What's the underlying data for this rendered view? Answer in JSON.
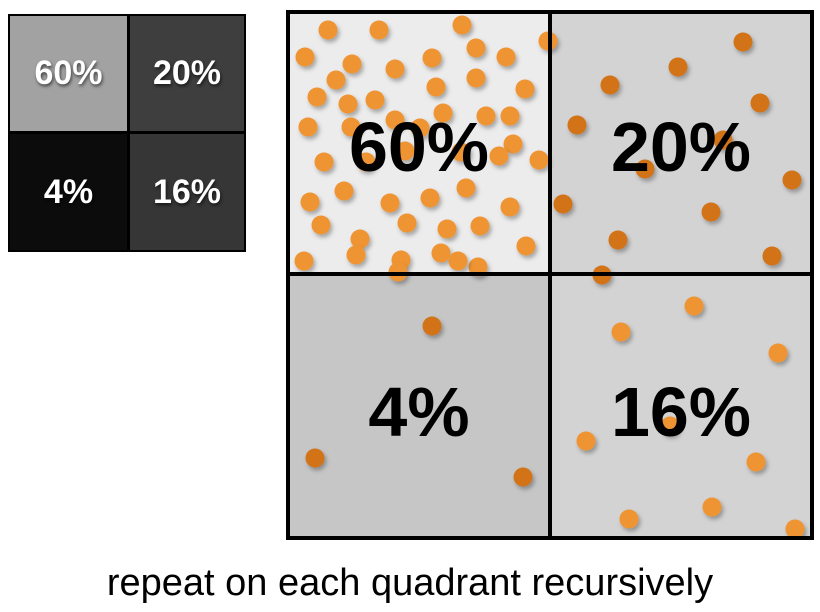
{
  "small_grid": {
    "cells": [
      {
        "label": "60%",
        "color": "#a2a2a2"
      },
      {
        "label": "20%",
        "color": "#3e3e3e"
      },
      {
        "label": "4%",
        "color": "#0c0c0c"
      },
      {
        "label": "16%",
        "color": "#363636"
      }
    ]
  },
  "big_grid": {
    "dot_color_light": "#ee9433",
    "dot_color_dark": "#d17319",
    "quadrants": [
      {
        "label": "60%",
        "fill": "#ececec"
      },
      {
        "label": "20%",
        "fill": "#d3d3d3"
      },
      {
        "label": "4%",
        "fill": "#c6c6c6"
      },
      {
        "label": "16%",
        "fill": "#d3d3d3"
      }
    ]
  },
  "caption": "repeat on each quadrant recursively"
}
